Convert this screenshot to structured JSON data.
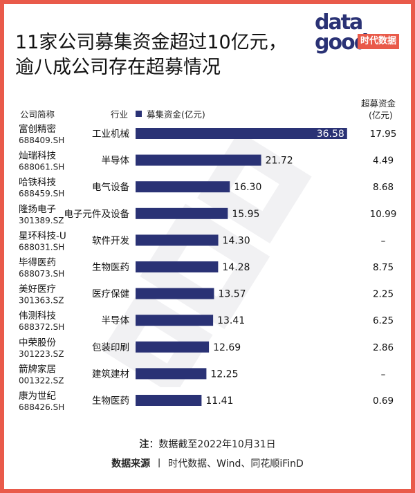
{
  "title_line1": "11家公司募集资金超过10亿元，",
  "title_line2": "逾八成公司存在超募情况",
  "logo": {
    "top": "data",
    "bottom": "good",
    "badge": "时代数据"
  },
  "headers": {
    "company": "公司简称",
    "industry": "行业",
    "legend": "募集资金(亿元)",
    "over_line1": "超募资金",
    "over_line2": "(亿元)"
  },
  "colors": {
    "bar": "#2a3275",
    "accent": "#e95a4a"
  },
  "chart_data": {
    "type": "bar",
    "orientation": "horizontal",
    "series": [
      {
        "name": "募集资金(亿元)",
        "values": [
          36.58,
          21.72,
          16.3,
          15.95,
          14.3,
          14.28,
          13.57,
          13.41,
          12.69,
          12.25,
          11.41
        ]
      }
    ],
    "rows": [
      {
        "name": "富创精密",
        "code": "688409.SH",
        "industry": "工业机械",
        "raised": 36.58,
        "raised_label": "36.58",
        "over": "17.95"
      },
      {
        "name": "灿瑞科技",
        "code": "688061.SH",
        "industry": "半导体",
        "raised": 21.72,
        "raised_label": "21.72",
        "over": "4.49"
      },
      {
        "name": "哈铁科技",
        "code": "688459.SH",
        "industry": "电气设备",
        "raised": 16.3,
        "raised_label": "16.30",
        "over": "8.68"
      },
      {
        "name": "隆扬电子",
        "code": "301389.SZ",
        "industry": "电子元件及设备",
        "raised": 15.95,
        "raised_label": "15.95",
        "over": "10.99"
      },
      {
        "name": "星环科技-U",
        "code": "688031.SH",
        "industry": "软件开发",
        "raised": 14.3,
        "raised_label": "14.30",
        "over": "–"
      },
      {
        "name": "毕得医药",
        "code": "688073.SH",
        "industry": "生物医药",
        "raised": 14.28,
        "raised_label": "14.28",
        "over": "8.75"
      },
      {
        "name": "美好医疗",
        "code": "301363.SZ",
        "industry": "医疗保健",
        "raised": 13.57,
        "raised_label": "13.57",
        "over": "2.25"
      },
      {
        "name": "伟测科技",
        "code": "688372.SH",
        "industry": "半导体",
        "raised": 13.41,
        "raised_label": "13.41",
        "over": "6.25"
      },
      {
        "name": "中荣股份",
        "code": "301223.SZ",
        "industry": "包装印刷",
        "raised": 12.69,
        "raised_label": "12.69",
        "over": "2.86"
      },
      {
        "name": "箭牌家居",
        "code": "001322.SZ",
        "industry": "建筑建材",
        "raised": 12.25,
        "raised_label": "12.25",
        "over": "–"
      },
      {
        "name": "康为世纪",
        "code": "688426.SH",
        "industry": "生物医药",
        "raised": 11.41,
        "raised_label": "11.41",
        "over": "0.69"
      }
    ]
  },
  "note": {
    "label": "注",
    "sep": "：",
    "text": "数据截至2022年10月31日"
  },
  "source": {
    "label": "数据来源",
    "sep": "丨",
    "text": "时代数据、Wind、同花顺iFinD"
  }
}
